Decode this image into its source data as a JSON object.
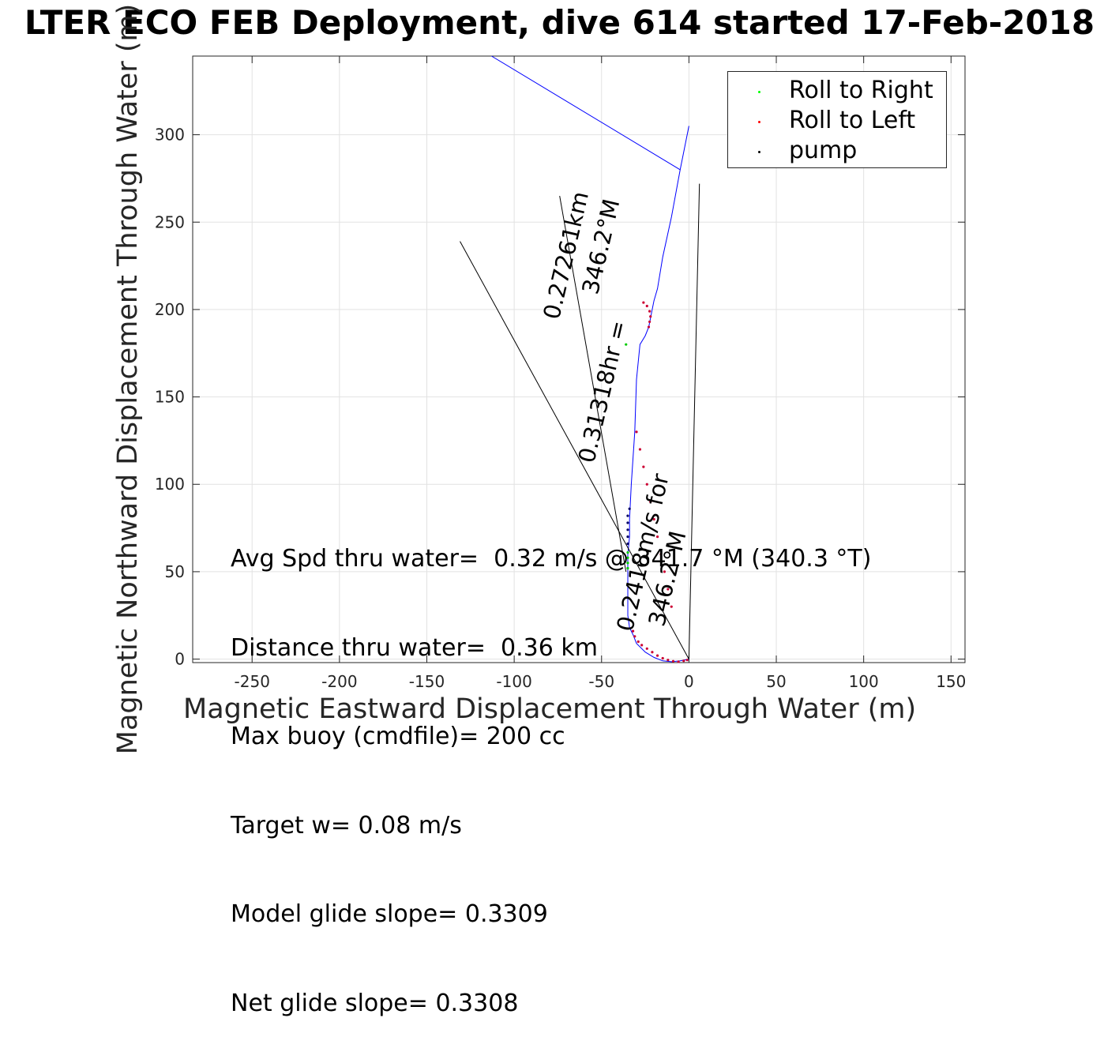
{
  "chart_data": {
    "type": "line",
    "title": "LTER ECO FEB Deployment, dive 614 started 17-Feb-2018",
    "xlabel": "Magnetic Eastward Displacement Through Water (m)",
    "ylabel": "Magnetic Northward Displacement Through Water (m)",
    "xlim": [
      -284,
      158
    ],
    "ylim": [
      -2,
      345
    ],
    "xticks": [
      -250,
      -200,
      -150,
      -100,
      -50,
      0,
      50,
      100,
      150
    ],
    "yticks": [
      0,
      50,
      100,
      150,
      200,
      250,
      300
    ],
    "grid": true,
    "legend_location": "top-right",
    "legend": [
      {
        "label": "Roll to Right",
        "color": "#00ff00"
      },
      {
        "label": "Roll to Left",
        "color": "#ff0000"
      },
      {
        "label": "pump",
        "color": "#000000"
      }
    ],
    "series": [
      {
        "kind": "line",
        "color": "#0000ff",
        "x": [
          0,
          -5,
          -10,
          -15,
          -20,
          -25,
          -30,
          -32,
          -34,
          -35,
          -35,
          -35,
          -35,
          -34,
          -34,
          -33,
          -31,
          -30,
          -28,
          -25,
          -23,
          -22,
          -21,
          -20,
          -18,
          -15,
          -10,
          -5,
          0
        ],
        "y": [
          0,
          -1,
          -1.5,
          -1,
          1,
          4,
          9,
          14,
          18,
          25,
          35,
          50,
          60,
          70,
          80,
          100,
          130,
          160,
          180,
          185,
          190,
          195,
          200,
          205,
          212,
          230,
          253,
          280,
          305
        ]
      },
      {
        "kind": "line",
        "color": "#0000ff",
        "x": [
          -5,
          -113
        ],
        "y": [
          280,
          345
        ]
      },
      {
        "kind": "line",
        "color": "#000000",
        "x": [
          0,
          6
        ],
        "y": [
          0,
          272
        ]
      },
      {
        "kind": "line",
        "color": "#000000",
        "x": [
          0,
          -131
        ],
        "y": [
          0,
          239
        ]
      },
      {
        "kind": "line",
        "color": "#000000",
        "x": [
          -36,
          -74
        ],
        "y": [
          50,
          265
        ]
      }
    ],
    "markers": [
      {
        "role": "Roll to Left",
        "color": "#cc0033",
        "x": [
          -1,
          -3,
          -6,
          -9,
          -12,
          -15,
          -18,
          -21,
          -24,
          -27,
          -29,
          -31,
          -32
        ],
        "y": [
          -0.5,
          -1,
          -1.5,
          -1.2,
          -0.5,
          0.5,
          2,
          4,
          6,
          8,
          10,
          13,
          16
        ]
      },
      {
        "role": "Roll to Left",
        "color": "#cc0033",
        "x": [
          -10,
          -12,
          -14,
          -16,
          -18,
          -20,
          -22,
          -24,
          -26,
          -28,
          -30
        ],
        "y": [
          30,
          40,
          50,
          60,
          70,
          80,
          90,
          100,
          110,
          120,
          130
        ]
      },
      {
        "role": "Roll to Left",
        "color": "#cc0033",
        "x": [
          -23,
          -22.5,
          -22,
          -22.5,
          -24,
          -26
        ],
        "y": [
          190,
          193,
          196,
          199,
          202,
          204
        ]
      },
      {
        "role": "Roll to Right",
        "color": "#00cc00",
        "x": [
          -35,
          -35,
          -35,
          -35,
          -36
        ],
        "y": [
          52,
          55,
          58,
          61,
          180
        ]
      },
      {
        "role": "pump",
        "color": "#000066",
        "x": [
          -35,
          -35,
          -35,
          -35,
          -35,
          -34
        ],
        "y": [
          66,
          70,
          74,
          78,
          82,
          86
        ]
      }
    ],
    "annotations": [
      {
        "text": "0.27261km",
        "x": -66,
        "y": 230,
        "angle": -76.8
      },
      {
        "text": "346.2°M",
        "x": -46,
        "y": 235,
        "angle": -76.8
      },
      {
        "text": "0.31318hr =",
        "x": -45,
        "y": 152,
        "angle": -76.8
      },
      {
        "text": "0.2418m/s for",
        "x": -22,
        "y": 60,
        "angle": -76.8
      },
      {
        "text": "346.2°M",
        "x": -8,
        "y": 45,
        "angle": -76.8
      }
    ]
  },
  "stats": {
    "avg_speed": "Avg Spd thru water=  0.32 m/s @ 341.7 °M (340.3 °T)",
    "distance": "Distance thru water=  0.36 km",
    "max_buoy": "Max buoy (cmdfile)= 200 cc",
    "target_w": "Target w= 0.08 m/s",
    "model_glide": "Model glide slope= 0.3309",
    "net_glide": "Net glide slope= 0.3308"
  }
}
